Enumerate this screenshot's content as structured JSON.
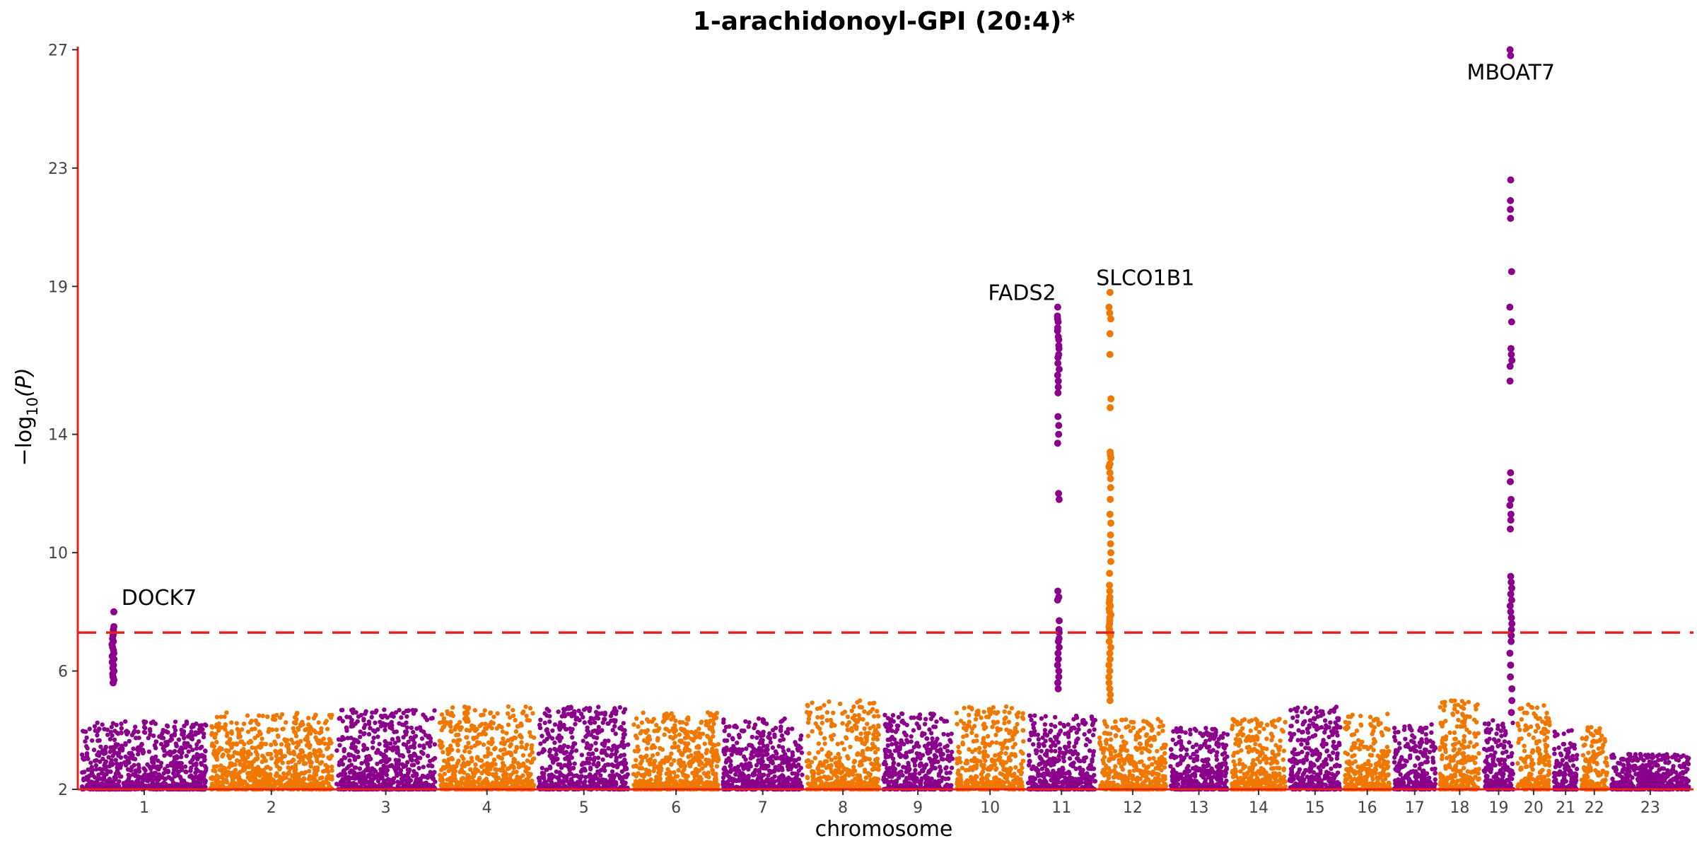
{
  "chart_data": {
    "type": "scatter",
    "title": "1-arachidonoyl-GPI (20:4)*",
    "xlabel": "chromosome",
    "ylabel": "−log",
    "ylabel_sub": "10",
    "ylabel_arg": "(P)",
    "ylim": [
      2,
      27.2
    ],
    "yticks": [
      2,
      6,
      10,
      14,
      19,
      23,
      27
    ],
    "significance_threshold": 7.3,
    "colors": {
      "odd": "#8B008B",
      "even": "#F07800",
      "axis": "#E8211F",
      "threshold": "#E8211F"
    },
    "chromosomes": [
      {
        "label": "1",
        "size": 249,
        "base_max": 4.3
      },
      {
        "label": "2",
        "size": 243,
        "base_max": 4.6
      },
      {
        "label": "3",
        "size": 198,
        "base_max": 4.7
      },
      {
        "label": "4",
        "size": 190,
        "base_max": 4.8
      },
      {
        "label": "5",
        "size": 181,
        "base_max": 4.8
      },
      {
        "label": "6",
        "size": 171,
        "base_max": 4.6
      },
      {
        "label": "7",
        "size": 159,
        "base_max": 4.4
      },
      {
        "label": "8",
        "size": 145,
        "base_max": 5.0
      },
      {
        "label": "9",
        "size": 138,
        "base_max": 4.6
      },
      {
        "label": "10",
        "size": 134,
        "base_max": 4.8
      },
      {
        "label": "11",
        "size": 135,
        "base_max": 4.5
      },
      {
        "label": "12",
        "size": 133,
        "base_max": 4.4
      },
      {
        "label": "13",
        "size": 115,
        "base_max": 4.1
      },
      {
        "label": "14",
        "size": 107,
        "base_max": 4.4
      },
      {
        "label": "15",
        "size": 102,
        "base_max": 4.8
      },
      {
        "label": "16",
        "size": 90,
        "base_max": 4.6
      },
      {
        "label": "17",
        "size": 83,
        "base_max": 4.2
      },
      {
        "label": "18",
        "size": 80,
        "base_max": 5.0
      },
      {
        "label": "19",
        "size": 59,
        "base_max": 4.4
      },
      {
        "label": "20",
        "size": 64,
        "base_max": 4.9
      },
      {
        "label": "21",
        "size": 47,
        "base_max": 4.0
      },
      {
        "label": "22",
        "size": 51,
        "base_max": 4.1
      },
      {
        "label": "23",
        "size": 156,
        "base_max": 3.2
      }
    ],
    "peaks": [
      {
        "gene": "DOCK7",
        "chr": "1",
        "pos": 62,
        "values": [
          8.0,
          7.5,
          7.4,
          7.3,
          7.2,
          7.1,
          7.0,
          6.9,
          6.8,
          6.7,
          6.6,
          6.5,
          6.4,
          6.3,
          6.2,
          6.1,
          6.0,
          5.9,
          5.8,
          5.7,
          5.6
        ]
      },
      {
        "gene": "FADS2",
        "chr": "11",
        "pos": 61,
        "values": [
          18.3,
          18.0,
          17.9,
          17.8,
          17.6,
          17.5,
          17.3,
          17.2,
          17.0,
          16.9,
          16.7,
          16.6,
          16.4,
          16.2,
          16.0,
          15.8,
          15.6,
          15.4,
          14.6,
          14.3,
          14.0,
          13.7,
          12.0,
          11.8,
          8.7,
          8.5,
          8.4,
          7.7,
          7.4,
          7.3,
          7.1,
          7.0,
          6.8,
          6.6,
          6.4,
          6.2,
          6.0,
          5.8,
          5.6,
          5.4
        ]
      },
      {
        "gene": "SLCO1B1",
        "chr": "12",
        "pos": 21,
        "values": [
          18.8,
          18.3,
          18.1,
          17.9,
          17.4,
          16.7,
          15.2,
          14.9,
          13.4,
          13.3,
          13.2,
          13.0,
          12.9,
          12.7,
          12.5,
          12.2,
          11.8,
          11.3,
          11.0,
          10.6,
          10.3,
          10.0,
          9.7,
          9.3,
          8.9,
          8.7,
          8.5,
          8.4,
          8.3,
          8.2,
          8.1,
          8.0,
          7.9,
          7.8,
          7.7,
          7.6,
          7.5,
          7.4,
          7.3,
          7.2,
          7.0,
          6.8,
          6.6,
          6.4,
          6.2,
          6.0,
          5.8,
          5.6,
          5.4,
          5.2,
          5.0
        ]
      },
      {
        "gene": "MBOAT7",
        "chr": "19",
        "pos": 54,
        "values": [
          27.0,
          26.8,
          22.6,
          21.9,
          21.6,
          21.3,
          19.5,
          18.3,
          17.8,
          16.9,
          16.7,
          16.5,
          16.3,
          15.8,
          12.7,
          12.4,
          11.8,
          11.6,
          11.3,
          11.1,
          10.8,
          9.2,
          9.0,
          8.8,
          8.6,
          8.4,
          8.2,
          8.0,
          7.8,
          7.6,
          7.4,
          7.2,
          7.0,
          6.6,
          6.2,
          5.8,
          5.4,
          5.0,
          4.6
        ]
      }
    ],
    "gene_labels": [
      {
        "gene": "DOCK7",
        "text": "DOCK7"
      },
      {
        "gene": "FADS2",
        "text": "FADS2"
      },
      {
        "gene": "SLCO1B1",
        "text": "SLCO1B1"
      },
      {
        "gene": "MBOAT7",
        "text": "MBOAT7"
      }
    ]
  }
}
